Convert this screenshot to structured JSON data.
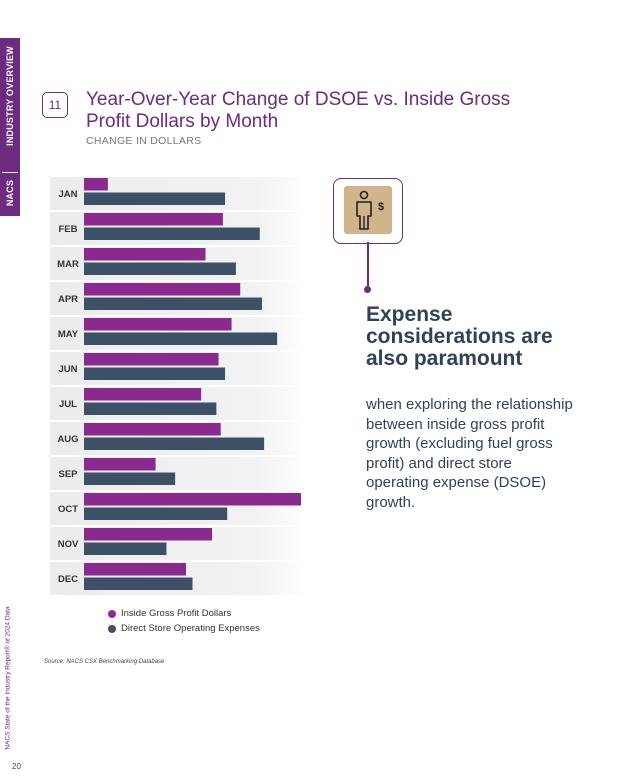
{
  "side_tab": {
    "section": "INDUSTRY OVERVIEW",
    "brand": "NACS"
  },
  "side_footer": "NACS State of the Industry Report® of 2024 Data",
  "page_number": "20",
  "figure_number": "11",
  "title": "Year-Over-Year Change of DSOE vs. Inside Gross Profit Dollars by Month",
  "subtitle": "CHANGE IN DOLLARS",
  "colors": {
    "purple": "#8a2a8f",
    "slate": "#3c5166",
    "brand": "#6d2b7f"
  },
  "chart_data": {
    "type": "bar",
    "orientation": "horizontal",
    "categories": [
      "JAN",
      "FEB",
      "MAR",
      "APR",
      "MAY",
      "JUN",
      "JUL",
      "AUG",
      "SEP",
      "OCT",
      "NOV",
      "DEC"
    ],
    "series": [
      {
        "name": "Inside Gross Profit Dollars",
        "color": "#8a2a8f",
        "values": [
          11,
          64,
          56,
          72,
          68,
          62,
          54,
          63,
          33,
          100,
          59,
          47
        ]
      },
      {
        "name": "Direct Store Operating Expenses",
        "color": "#3c5166",
        "values": [
          65,
          81,
          70,
          82,
          89,
          65,
          61,
          83,
          42,
          66,
          38,
          50
        ]
      }
    ],
    "value_axis": "unlabeled",
    "grid": false
  },
  "legend": [
    {
      "label": "Inside Gross Profit Dollars",
      "color": "#8a2a8f"
    },
    {
      "label": "Direct Store Operating Expenses",
      "color": "#3c5166"
    }
  ],
  "source": "Source: NACS CSX Benchmarking Database",
  "callout": {
    "icon": "person-dollar-icon",
    "headline": "Expense considerations are also paramount",
    "body": "when exploring the relationship between inside gross profit growth (excluding fuel gross profit) and direct store operating expense (DSOE) growth."
  }
}
